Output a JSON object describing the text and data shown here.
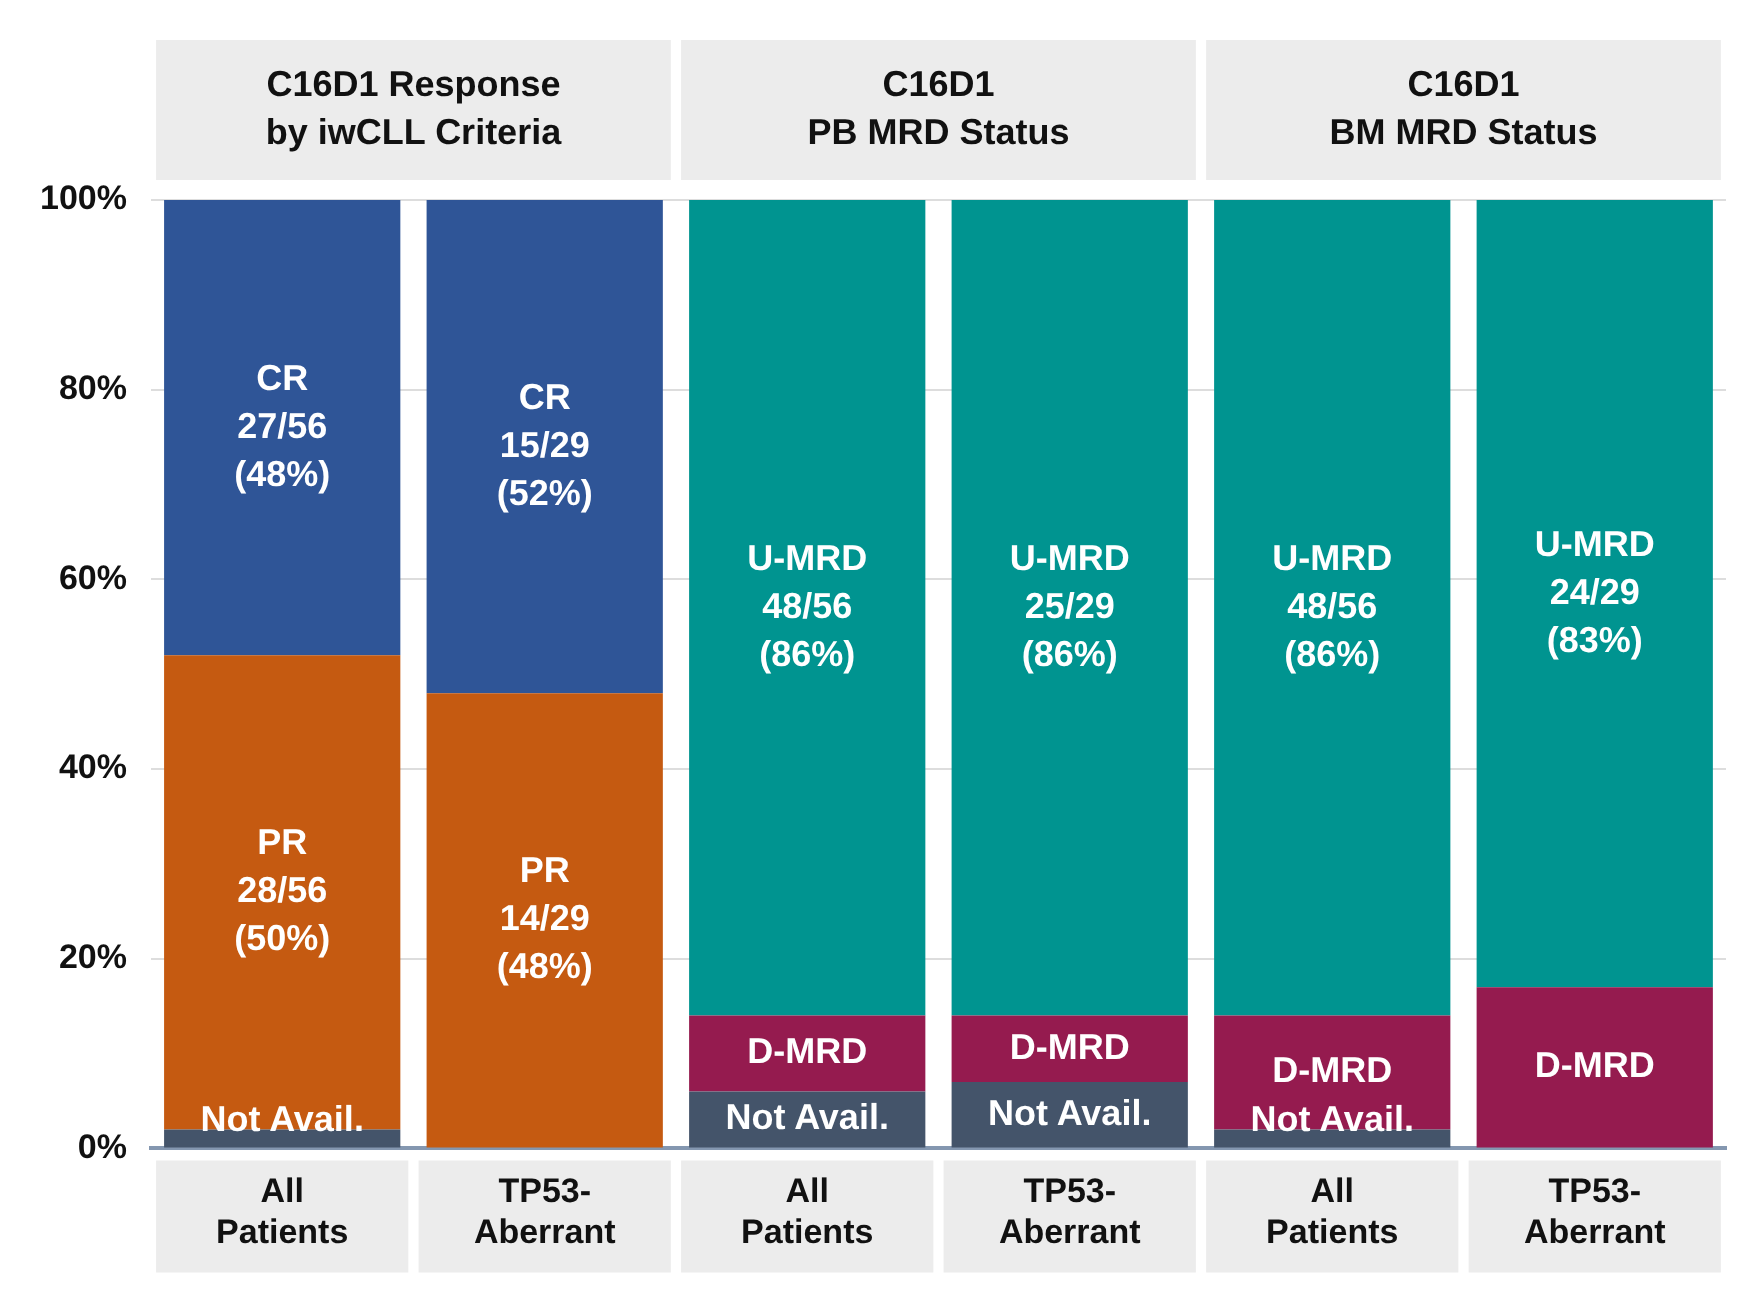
{
  "chart_data": {
    "type": "bar",
    "stacked": true,
    "categories": [
      [
        "All",
        "Patients"
      ],
      [
        "TP53-",
        "Aberrant"
      ],
      [
        "All",
        "Patients"
      ],
      [
        "TP53-",
        "Aberrant"
      ],
      [
        "All",
        "Patients"
      ],
      [
        "TP53-",
        "Aberrant"
      ]
    ],
    "series": [
      {
        "color": "#44546a",
        "values": [
          2,
          null,
          6,
          7,
          2,
          null
        ],
        "value_labels": [
          "Not Avail.",
          null,
          "Not Avail.",
          "Not Avail.",
          "Not Avail.",
          null
        ]
      },
      {
        "color": "#c55a11",
        "values": [
          50,
          48,
          null,
          null,
          null,
          null
        ],
        "value_labels": [
          "PR\n28/56\n(50%)",
          "PR\n14/29\n(48%)",
          null,
          null,
          null,
          null
        ]
      },
      {
        "color": "#2f5597",
        "values": [
          48,
          52,
          null,
          null,
          null,
          null
        ],
        "value_labels": [
          "CR\n27/56\n(48%)",
          "CR\n15/29\n(52%)",
          null,
          null,
          null,
          null
        ]
      },
      {
        "color": "#951b4f",
        "values": [
          null,
          null,
          8,
          7,
          12,
          17
        ],
        "value_labels": [
          null,
          null,
          "D-MRD",
          "D-MRD",
          "D-MRD",
          "D-MRD"
        ]
      },
      {
        "color": "#009490",
        "values": [
          null,
          null,
          86,
          86,
          86,
          83
        ],
        "value_labels": [
          null,
          null,
          "U-MRD\n48/56\n(86%)",
          "U-MRD\n25/29\n(86%)",
          "U-MRD\n48/56\n(86%)",
          "U-MRD\n24/29\n(83%)"
        ]
      }
    ],
    "ylim": [
      0,
      100
    ],
    "yticks": [
      {
        "value": 0,
        "label": "0%"
      },
      {
        "value": 20,
        "label": "20%"
      },
      {
        "value": 40,
        "label": "40%"
      },
      {
        "value": 60,
        "label": "60%"
      },
      {
        "value": 80,
        "label": "80%"
      },
      {
        "value": 100,
        "label": "100%"
      }
    ],
    "grid": "y",
    "legend": false,
    "tick_labels": "xy",
    "annotations": [
      "C16D1 Response\nby iwCLL Criteria",
      "C16D1\nPB MRD Status",
      "C16D1\nBM MRD Status"
    ]
  }
}
